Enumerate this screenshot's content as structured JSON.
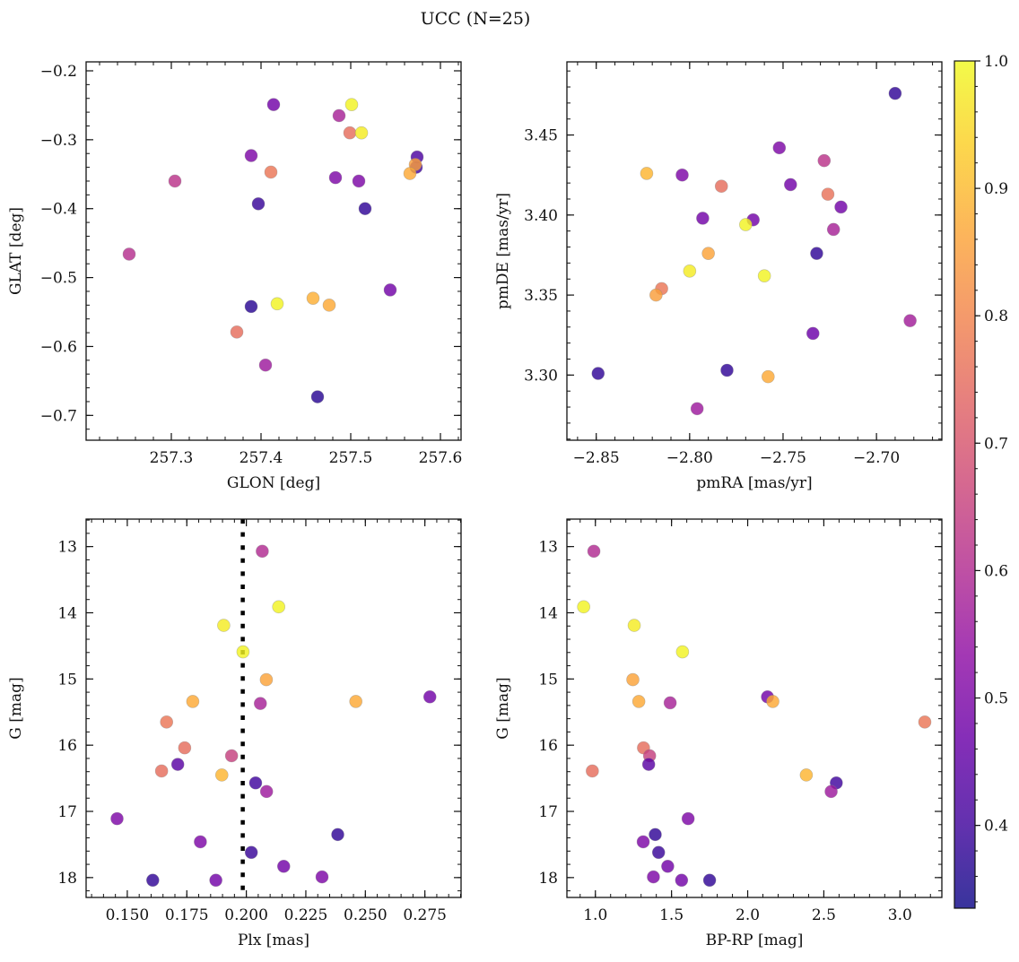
{
  "title": "UCC (N=25)",
  "colorbar": {
    "colormap": "plasma",
    "vmin": 0.335,
    "vmax": 1.0,
    "ticks": [
      0.4,
      0.5,
      0.6,
      0.7,
      0.8,
      0.9,
      1.0
    ],
    "tick_labels": [
      "0.4",
      "0.5",
      "0.6",
      "0.7",
      "0.8",
      "0.9",
      "1.0"
    ],
    "minor_step": 0.02
  },
  "chart_data": [
    {
      "type": "scatter",
      "xlabel": "GLON [deg]",
      "ylabel": "GLAT [deg]",
      "xlim": [
        257.205,
        257.623
      ],
      "ylim": [
        -0.736,
        -0.187
      ],
      "xticks": [
        257.3,
        257.4,
        257.5,
        257.6
      ],
      "xtick_labels": [
        "257.3",
        "257.4",
        "257.5",
        "257.6"
      ],
      "yticks": [
        -0.2,
        -0.3,
        -0.4,
        -0.5,
        -0.6,
        -0.7
      ],
      "ytick_labels": [
        "−0.2",
        "−0.3",
        "−0.4",
        "−0.5",
        "−0.6",
        "−0.7"
      ],
      "x_minor_step": 0.02,
      "y_minor_step": 0.02,
      "points": [
        [
          257.414,
          -0.249,
          0.48
        ],
        [
          257.501,
          -0.249,
          0.99
        ],
        [
          257.487,
          -0.265,
          0.58
        ],
        [
          257.499,
          -0.29,
          0.75
        ],
        [
          257.512,
          -0.29,
          0.98
        ],
        [
          257.389,
          -0.323,
          0.5
        ],
        [
          257.574,
          -0.325,
          0.42
        ],
        [
          257.573,
          -0.34,
          0.4
        ],
        [
          257.572,
          -0.336,
          0.85
        ],
        [
          257.566,
          -0.349,
          0.87
        ],
        [
          257.411,
          -0.347,
          0.77
        ],
        [
          257.304,
          -0.36,
          0.62
        ],
        [
          257.483,
          -0.355,
          0.5
        ],
        [
          257.509,
          -0.36,
          0.5
        ],
        [
          257.397,
          -0.393,
          0.39
        ],
        [
          257.516,
          -0.4,
          0.38
        ],
        [
          257.253,
          -0.466,
          0.61
        ],
        [
          257.544,
          -0.518,
          0.48
        ],
        [
          257.389,
          -0.542,
          0.37
        ],
        [
          257.418,
          -0.538,
          0.99
        ],
        [
          257.458,
          -0.53,
          0.88
        ],
        [
          257.476,
          -0.54,
          0.87
        ],
        [
          257.373,
          -0.579,
          0.75
        ],
        [
          257.405,
          -0.627,
          0.56
        ],
        [
          257.463,
          -0.673,
          0.37
        ]
      ]
    },
    {
      "type": "scatter",
      "xlabel": "pmRA [mas/yr]",
      "ylabel": "pmDE [mas/yr]",
      "xlim": [
        -2.8657,
        -2.665
      ],
      "ylim": [
        3.2593,
        3.4957
      ],
      "xticks": [
        -2.85,
        -2.8,
        -2.75,
        -2.7
      ],
      "xtick_labels": [
        "−2.85",
        "−2.80",
        "−2.75",
        "−2.70"
      ],
      "yticks": [
        3.3,
        3.35,
        3.4,
        3.45
      ],
      "ytick_labels": [
        "3.30",
        "3.35",
        "3.40",
        "3.45"
      ],
      "x_minor_step": 0.01,
      "y_minor_step": 0.01,
      "points": [
        [
          -2.69,
          3.476,
          0.38
        ],
        [
          -2.752,
          3.442,
          0.5
        ],
        [
          -2.728,
          3.434,
          0.62
        ],
        [
          -2.823,
          3.426,
          0.89
        ],
        [
          -2.804,
          3.425,
          0.5
        ],
        [
          -2.783,
          3.418,
          0.75
        ],
        [
          -2.746,
          3.419,
          0.48
        ],
        [
          -2.726,
          3.413,
          0.76
        ],
        [
          -2.719,
          3.405,
          0.48
        ],
        [
          -2.793,
          3.398,
          0.48
        ],
        [
          -2.766,
          3.397,
          0.48
        ],
        [
          -2.77,
          3.394,
          0.99
        ],
        [
          -2.723,
          3.391,
          0.58
        ],
        [
          -2.79,
          3.376,
          0.86
        ],
        [
          -2.732,
          3.376,
          0.38
        ],
        [
          -2.8,
          3.365,
          0.98
        ],
        [
          -2.76,
          3.362,
          0.99
        ],
        [
          -2.815,
          3.354,
          0.77
        ],
        [
          -2.818,
          3.35,
          0.85
        ],
        [
          -2.682,
          3.334,
          0.57
        ],
        [
          -2.734,
          3.326,
          0.47
        ],
        [
          -2.849,
          3.301,
          0.38
        ],
        [
          -2.78,
          3.303,
          0.38
        ],
        [
          -2.758,
          3.299,
          0.87
        ],
        [
          -2.796,
          3.279,
          0.56
        ]
      ]
    },
    {
      "type": "scatter",
      "xlabel": "Plx [mas]",
      "ylabel": "G [mag]",
      "xlim": [
        0.1327,
        0.2902
      ],
      "ylim": [
        18.3,
        12.585
      ],
      "y_inverted": true,
      "xticks": [
        0.15,
        0.175,
        0.2,
        0.225,
        0.25,
        0.275
      ],
      "xtick_labels": [
        "0.150",
        "0.175",
        "0.200",
        "0.225",
        "0.250",
        "0.275"
      ],
      "yticks": [
        13,
        14,
        15,
        16,
        17,
        18
      ],
      "ytick_labels": [
        "13",
        "14",
        "15",
        "16",
        "17",
        "18"
      ],
      "x_minor_step": 0.005,
      "y_minor_step": 0.2,
      "vline": 0.1985,
      "points": [
        [
          0.2067,
          13.07,
          0.6
        ],
        [
          0.2136,
          13.91,
          0.99
        ],
        [
          0.1905,
          14.19,
          0.98
        ],
        [
          0.1986,
          14.59,
          0.99
        ],
        [
          0.2084,
          15.01,
          0.86
        ],
        [
          0.1775,
          15.34,
          0.87
        ],
        [
          0.2059,
          15.37,
          0.58
        ],
        [
          0.246,
          15.34,
          0.87
        ],
        [
          0.2771,
          15.27,
          0.48
        ],
        [
          0.1665,
          15.65,
          0.77
        ],
        [
          0.1741,
          16.04,
          0.75
        ],
        [
          0.1938,
          16.16,
          0.65
        ],
        [
          0.1712,
          16.29,
          0.44
        ],
        [
          0.1644,
          16.39,
          0.75
        ],
        [
          0.1897,
          16.45,
          0.89
        ],
        [
          0.2039,
          16.57,
          0.4
        ],
        [
          0.2085,
          16.7,
          0.56
        ],
        [
          0.1457,
          17.11,
          0.5
        ],
        [
          0.2384,
          17.35,
          0.38
        ],
        [
          0.1807,
          17.46,
          0.5
        ],
        [
          0.2021,
          17.62,
          0.39
        ],
        [
          0.2157,
          17.83,
          0.48
        ],
        [
          0.2318,
          17.99,
          0.5
        ],
        [
          0.1607,
          18.04,
          0.38
        ],
        [
          0.1872,
          18.04,
          0.48
        ]
      ]
    },
    {
      "type": "scatter",
      "xlabel": "BP-RP [mag]",
      "ylabel": "G [mag]",
      "xlim": [
        0.813,
        3.275
      ],
      "ylim": [
        18.3,
        12.585
      ],
      "y_inverted": true,
      "xticks": [
        1.0,
        1.5,
        2.0,
        2.5,
        3.0
      ],
      "xtick_labels": [
        "1.0",
        "1.5",
        "2.0",
        "2.5",
        "3.0"
      ],
      "yticks": [
        13,
        14,
        15,
        16,
        17,
        18
      ],
      "ytick_labels": [
        "13",
        "14",
        "15",
        "16",
        "17",
        "18"
      ],
      "x_minor_step": 0.1,
      "y_minor_step": 0.2,
      "points": [
        [
          0.99,
          13.07,
          0.6
        ],
        [
          0.923,
          13.91,
          0.99
        ],
        [
          1.255,
          14.19,
          0.98
        ],
        [
          1.572,
          14.59,
          0.99
        ],
        [
          1.246,
          15.01,
          0.86
        ],
        [
          1.285,
          15.34,
          0.87
        ],
        [
          1.491,
          15.36,
          0.58
        ],
        [
          2.13,
          15.27,
          0.48
        ],
        [
          2.165,
          15.34,
          0.87
        ],
        [
          3.163,
          15.65,
          0.77
        ],
        [
          1.316,
          16.04,
          0.75
        ],
        [
          1.356,
          16.16,
          0.65
        ],
        [
          1.35,
          16.29,
          0.44
        ],
        [
          0.98,
          16.39,
          0.75
        ],
        [
          2.385,
          16.45,
          0.89
        ],
        [
          2.582,
          16.57,
          0.4
        ],
        [
          2.548,
          16.7,
          0.56
        ],
        [
          1.609,
          17.11,
          0.5
        ],
        [
          1.393,
          17.35,
          0.38
        ],
        [
          1.314,
          17.46,
          0.5
        ],
        [
          1.415,
          17.62,
          0.39
        ],
        [
          1.475,
          17.83,
          0.48
        ],
        [
          1.381,
          17.99,
          0.5
        ],
        [
          1.75,
          18.04,
          0.38
        ],
        [
          1.566,
          18.04,
          0.48
        ]
      ]
    }
  ]
}
